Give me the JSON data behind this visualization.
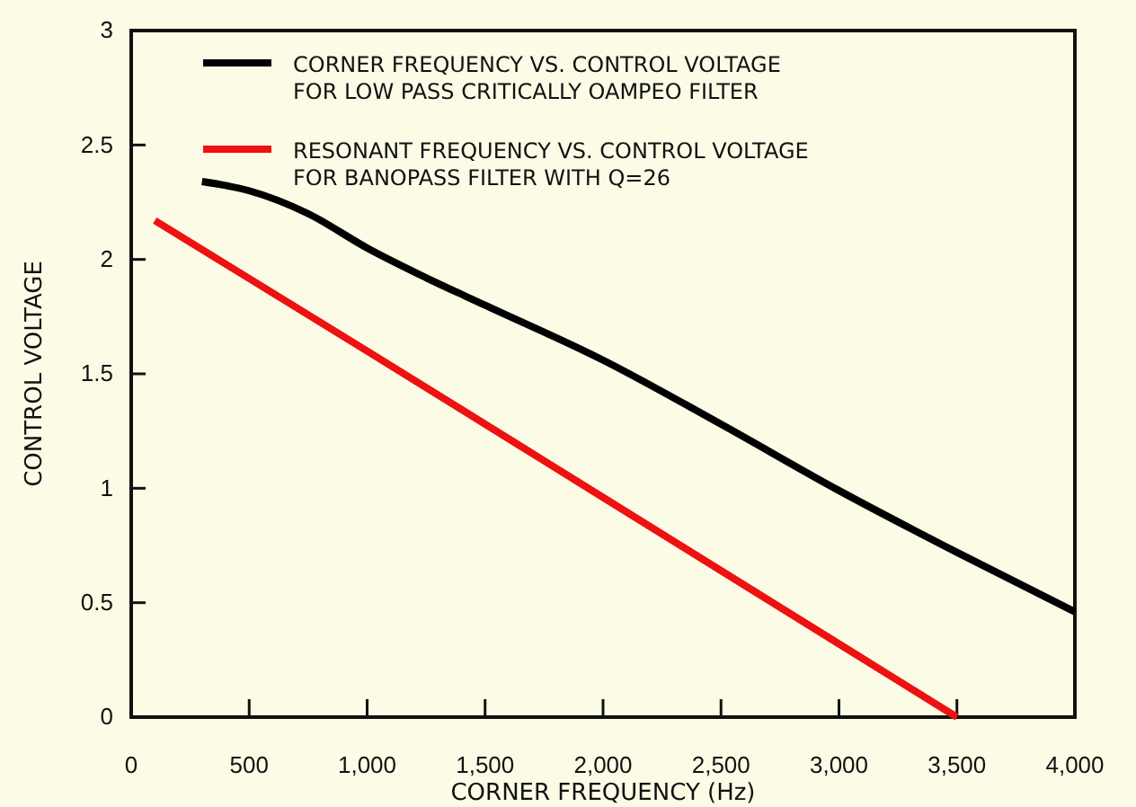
{
  "chart_data": {
    "type": "line",
    "xlabel": "CORNER FREQUENCY (Hz)",
    "ylabel": "CONTROL VOLTAGE",
    "xlim": [
      0,
      4000
    ],
    "ylim": [
      0,
      3
    ],
    "xticks": [
      0,
      {
        "value": 500,
        "label": "500"
      },
      {
        "value": 1000,
        "label": "1,000"
      },
      {
        "value": 1500,
        "label": "1,500"
      },
      {
        "value": 2000,
        "label": "2,000"
      },
      {
        "value": 2500,
        "label": "2,500"
      },
      {
        "value": 3000,
        "label": "3,000"
      },
      {
        "value": 3500,
        "label": "3,500"
      },
      {
        "value": 4000,
        "label": "4,000"
      }
    ],
    "yticks": [
      0,
      0.5,
      1,
      1.5,
      2,
      2.5,
      3
    ],
    "grid": false,
    "legend": "top",
    "marker": "none",
    "line_style": "solid",
    "series": [
      {
        "name": "CORNER FREQUENCY VS. CONTROL VOLTAGE\nFOR LOW PASS CRITICALLY OAMPEO FILTER",
        "color": "#000000",
        "x": [
          300,
          500,
          750,
          1000,
          1250,
          1500,
          2000,
          2500,
          3000,
          3500,
          4000
        ],
        "values": [
          2.34,
          2.3,
          2.2,
          2.05,
          1.92,
          1.8,
          1.56,
          1.28,
          0.99,
          0.72,
          0.46
        ]
      },
      {
        "name": "RESONANT FREQUENCY VS. CONTROL VOLTAGE\nFOR BANOPASS FILTER WITH Q=26",
        "color": "#ee1111",
        "x": [
          100,
          1000,
          2000,
          3000,
          3500
        ],
        "values": [
          2.17,
          1.6,
          0.96,
          0.32,
          0
        ]
      }
    ]
  }
}
